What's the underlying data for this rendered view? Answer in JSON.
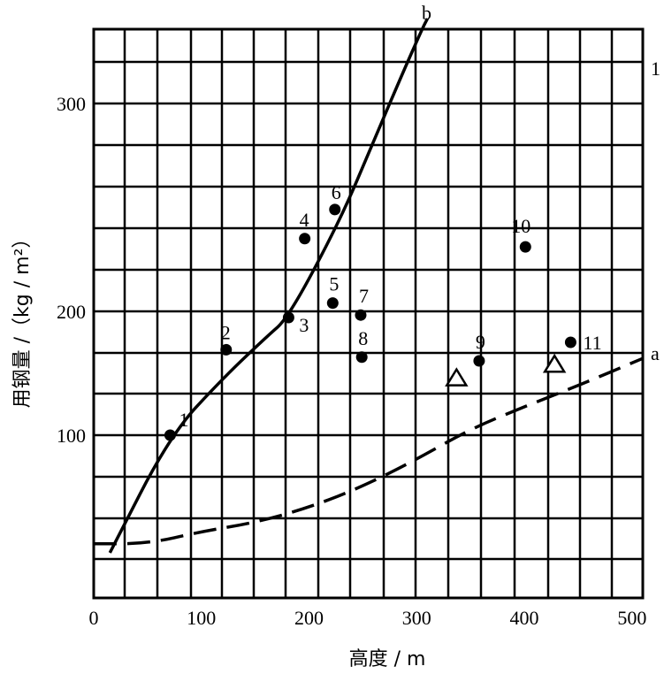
{
  "chart_data": {
    "type": "scatter",
    "xlabel": "高度 / m",
    "ylabel": "用钢量 /（kg / m²）",
    "xlim": [
      0,
      510
    ],
    "ylim_display": [
      46,
      349
    ],
    "grid": true,
    "x_ticks": [
      "0",
      "100",
      "200",
      "300",
      "400",
      "500"
    ],
    "y_ticks": [
      "100",
      "200",
      "300"
    ],
    "corner_label": "1",
    "points": [
      {
        "label": "1",
        "x": 71,
        "y": 100,
        "marker": "circle"
      },
      {
        "label": "2",
        "x": 123,
        "y": 169,
        "marker": "circle"
      },
      {
        "label": "3",
        "x": 181,
        "y": 195,
        "marker": "circle"
      },
      {
        "label": "4",
        "x": 196,
        "y": 235,
        "marker": "circle"
      },
      {
        "label": "5",
        "x": 222,
        "y": 204,
        "marker": "circle"
      },
      {
        "label": "6",
        "x": 224,
        "y": 249,
        "marker": "circle"
      },
      {
        "label": "7",
        "x": 248,
        "y": 197,
        "marker": "circle"
      },
      {
        "label": "8",
        "x": 249,
        "y": 163,
        "marker": "circle"
      },
      {
        "label": "9",
        "x": 358,
        "y": 160,
        "marker": "circle"
      },
      {
        "label": "10",
        "x": 401,
        "y": 231,
        "marker": "circle"
      },
      {
        "label": "11",
        "x": 443,
        "y": 175,
        "marker": "circle"
      },
      {
        "label": "",
        "x": 337,
        "y": 146,
        "marker": "triangle"
      },
      {
        "label": "",
        "x": 428,
        "y": 157,
        "marker": "triangle"
      }
    ],
    "curves": [
      {
        "name": "b",
        "style": "solid",
        "x": [
          15,
          71,
          120,
          160,
          181,
          230,
          260,
          290,
          305,
          310
        ],
        "y": [
          61,
          100,
          146,
          179,
          195,
          245,
          282,
          325,
          349,
          356
        ]
      },
      {
        "name": "a",
        "style": "dashed",
        "x": [
          0,
          50,
          100,
          150,
          200,
          250,
          300,
          350,
          400,
          450,
          510
        ],
        "y": [
          64,
          64,
          68,
          71,
          76,
          83,
          92,
          105,
          123,
          140,
          162
        ]
      }
    ]
  }
}
